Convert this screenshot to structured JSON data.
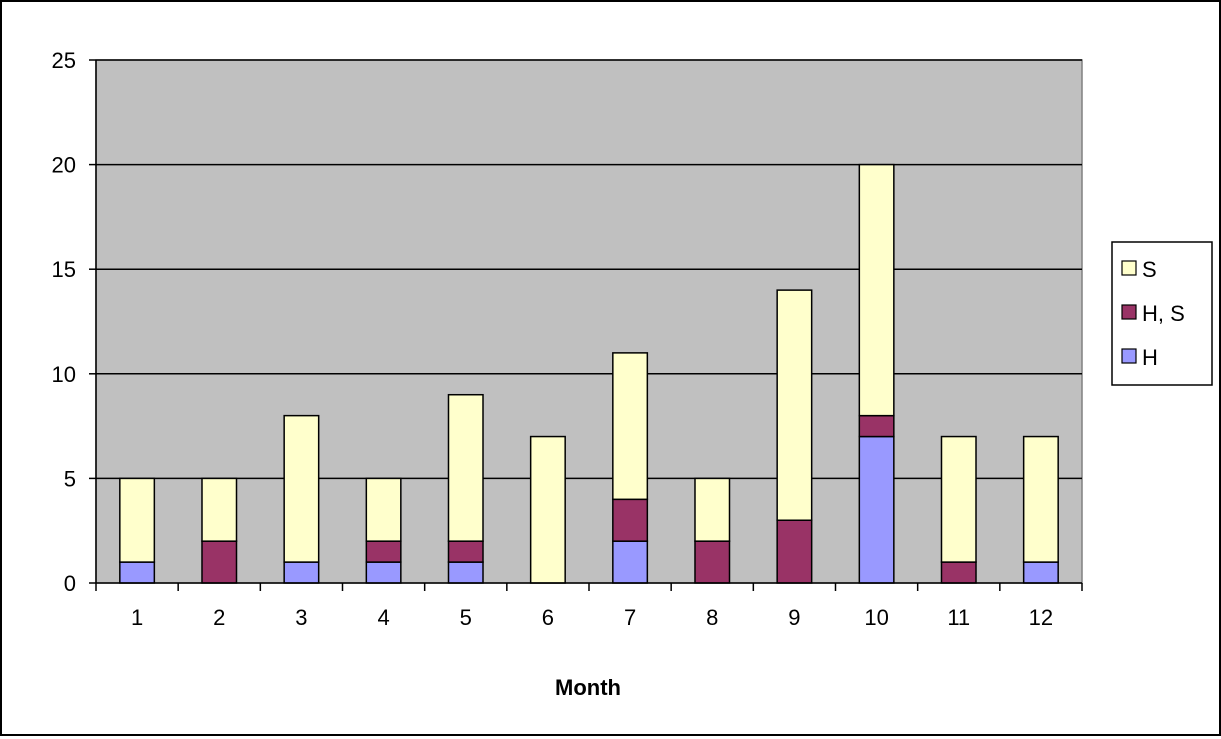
{
  "chart_data": {
    "type": "bar",
    "stacked": true,
    "title": "",
    "xlabel": "Month",
    "ylabel": "",
    "categories": [
      "1",
      "2",
      "3",
      "4",
      "5",
      "6",
      "7",
      "8",
      "9",
      "10",
      "11",
      "12"
    ],
    "ylim": [
      0,
      25
    ],
    "yticks": [
      0,
      5,
      10,
      15,
      20,
      25
    ],
    "grid": true,
    "legend_position": "right",
    "plot_background": "#C0C0C0",
    "series": [
      {
        "name": "H",
        "color": "#9999FF",
        "values": [
          1,
          0,
          1,
          1,
          1,
          0,
          2,
          0,
          0,
          7,
          0,
          1
        ]
      },
      {
        "name": "H, S",
        "color": "#993366",
        "values": [
          0,
          2,
          0,
          1,
          1,
          0,
          2,
          2,
          3,
          1,
          1,
          0
        ]
      },
      {
        "name": "S",
        "color": "#FFFFCC",
        "values": [
          4,
          3,
          7,
          3,
          7,
          7,
          7,
          3,
          11,
          12,
          6,
          6
        ]
      }
    ],
    "legend_order": [
      "S",
      "H, S",
      "H"
    ]
  }
}
